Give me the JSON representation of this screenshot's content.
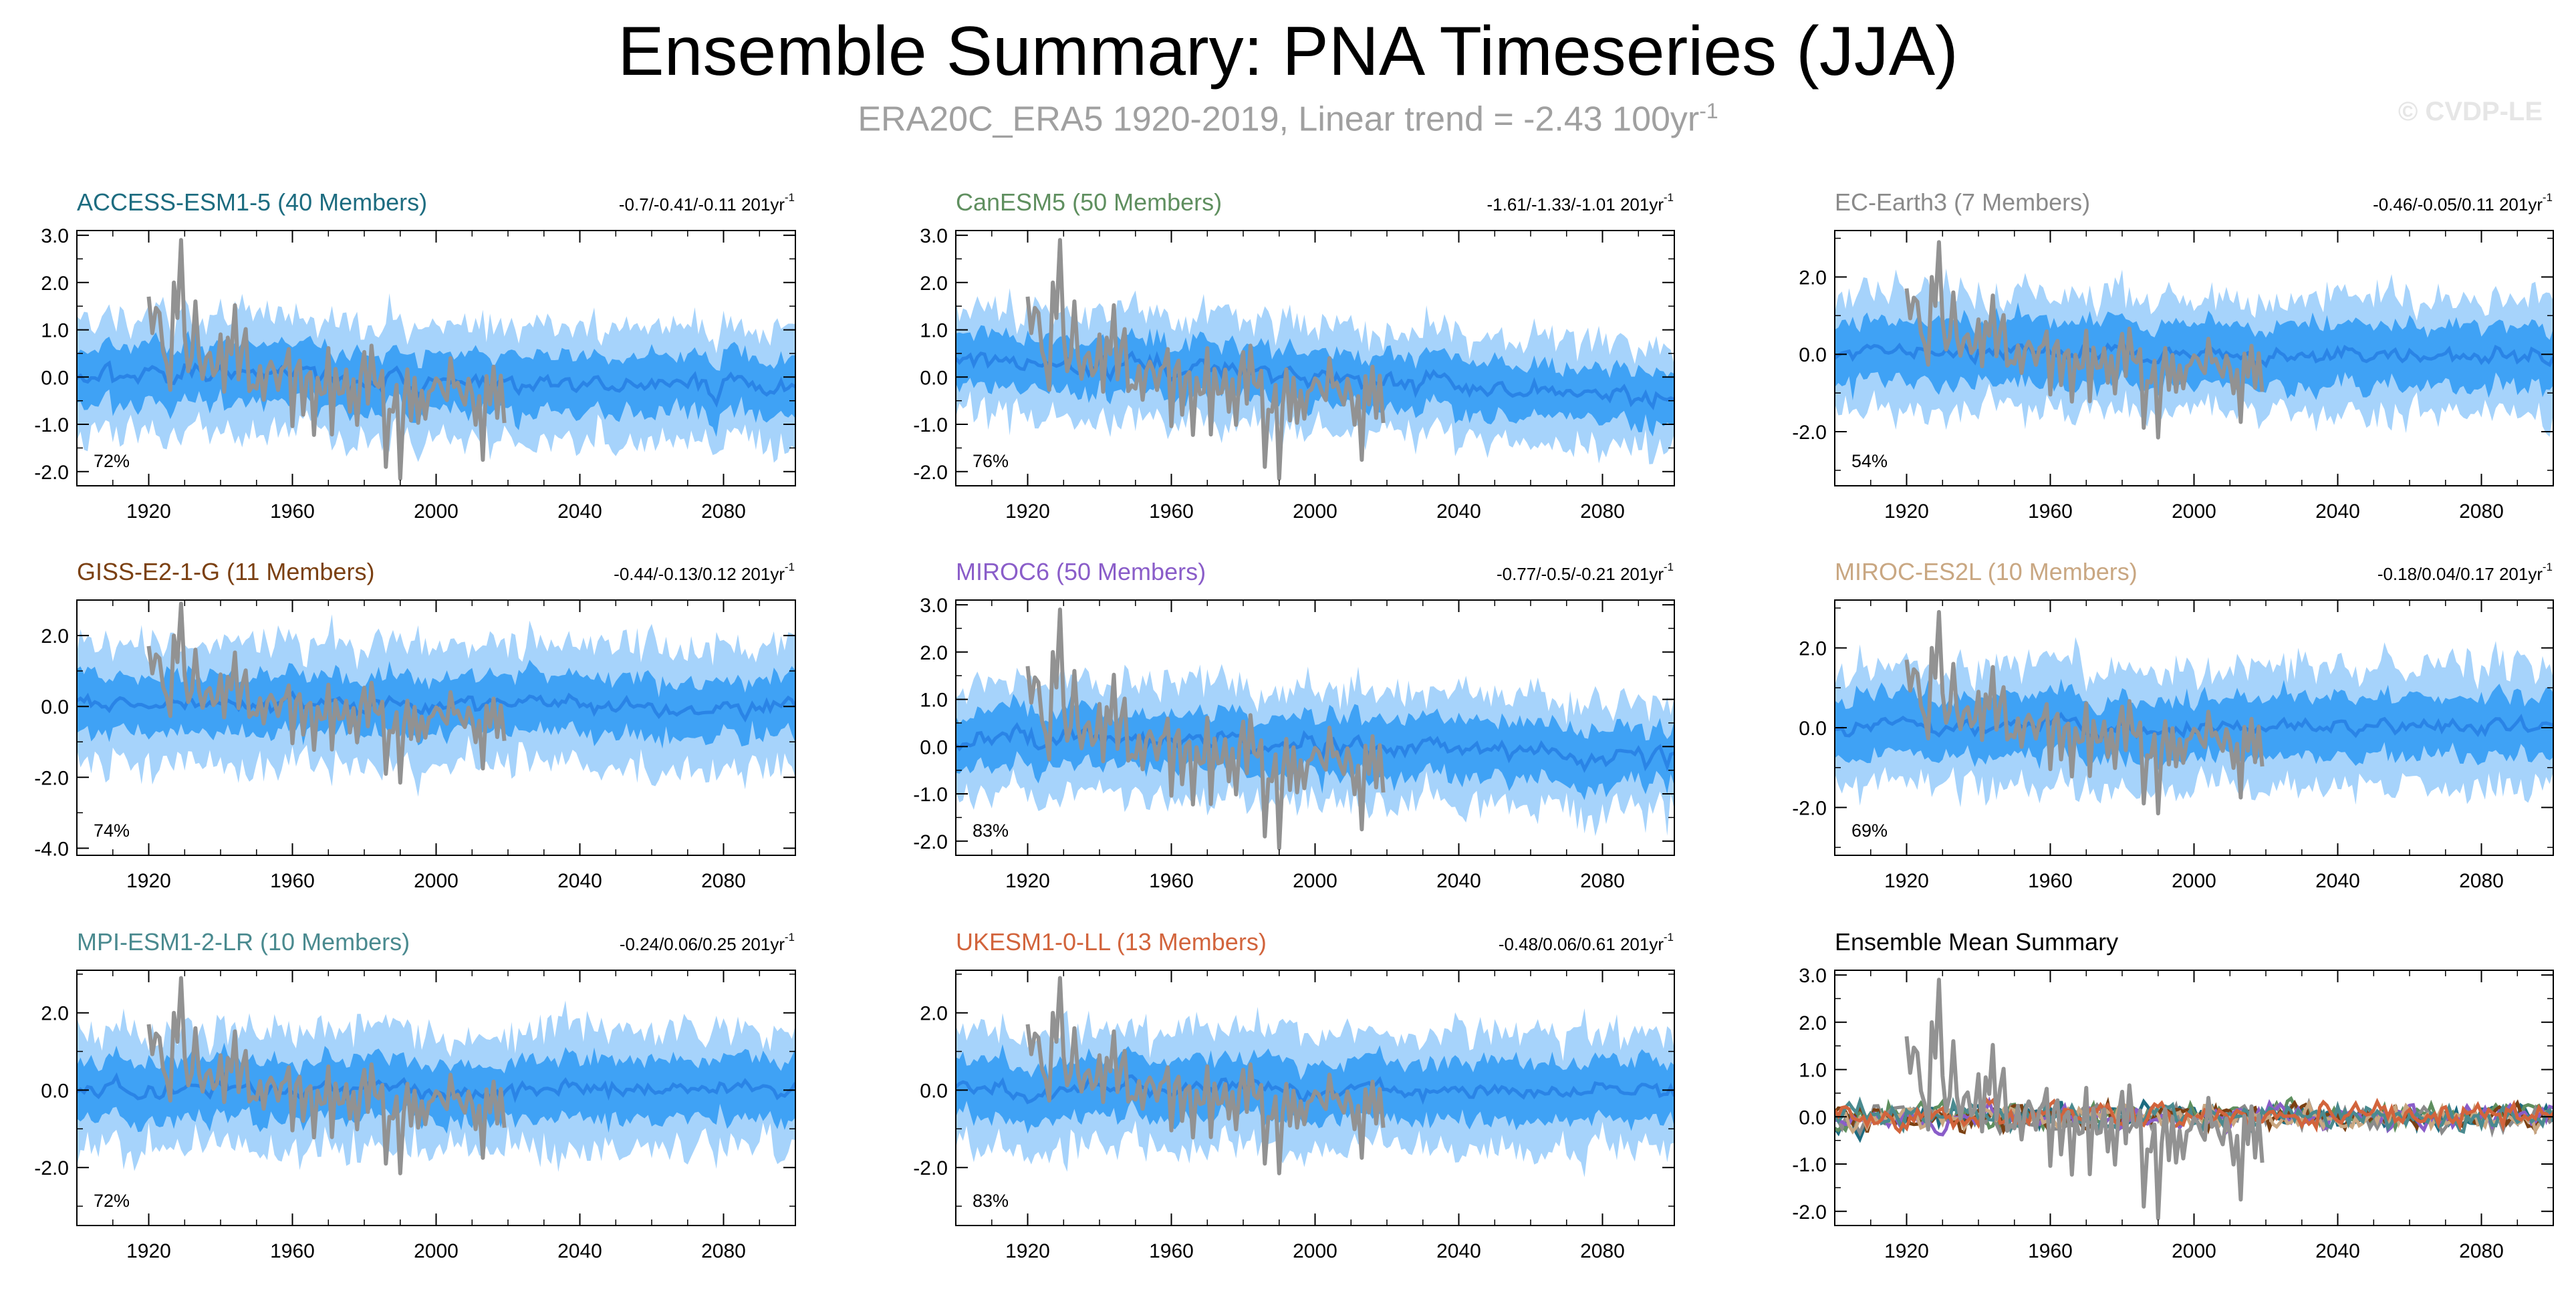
{
  "title": "Ensemble Summary: PNA Timeseries (JJA)",
  "subtitle": {
    "text": "ERA20C_ERA5 1920-2019, Linear trend = -2.43 100yr",
    "superscript": "-1"
  },
  "credit": "© CVDP-LE",
  "colors": {
    "band_outer": "#a6d3fb",
    "band_inner": "#3fa2f5",
    "ensemble_mean": "#2a84e6",
    "observations": "#929292"
  },
  "chart_data": [
    {
      "type": "area",
      "title": "ACCESS-ESM1-5 (40 Members)",
      "title_color": "#1d6c80",
      "trend": "-0.7/-0.41/-0.11 201yr",
      "trend_sup": "-1",
      "pct": "72%",
      "ylim": [
        -2.3,
        3.1
      ],
      "yticks": [
        -2.0,
        -1.0,
        0.0,
        1.0,
        2.0,
        3.0
      ],
      "yticklabels": [
        "-2.0",
        "-1.0",
        "0.0",
        "1.0",
        "2.0",
        "3.0"
      ],
      "xlim": [
        1900,
        2100
      ],
      "xticks": [
        1920,
        1960,
        2000,
        2040,
        2080
      ],
      "xticklabels": [
        "1920",
        "1960",
        "2000",
        "2040",
        "2080"
      ],
      "mean_trend": [
        0.15,
        -0.3
      ],
      "outer": 1.2,
      "inner": 0.6,
      "seed": 11
    },
    {
      "type": "area",
      "title": "CanESM5 (50 Members)",
      "title_color": "#5f8f5f",
      "trend": "-1.61/-1.33/-1.01 201yr",
      "trend_sup": "-1",
      "pct": "76%",
      "ylim": [
        -2.3,
        3.1
      ],
      "yticks": [
        -2.0,
        -1.0,
        0.0,
        1.0,
        2.0,
        3.0
      ],
      "yticklabels": [
        "-2.0",
        "-1.0",
        "0.0",
        "1.0",
        "2.0",
        "3.0"
      ],
      "xlim": [
        1900,
        2100
      ],
      "xticks": [
        1920,
        1960,
        2000,
        2040,
        2080
      ],
      "xticklabels": [
        "1920",
        "1960",
        "2000",
        "2040",
        "2080"
      ],
      "mean_trend": [
        0.45,
        -0.45
      ],
      "outer": 1.1,
      "inner": 0.55,
      "seed": 23
    },
    {
      "type": "area",
      "title": "EC-Earth3 (7 Members)",
      "title_color": "#8a8a8a",
      "trend": "-0.46/-0.05/0.11 201yr",
      "trend_sup": "-1",
      "pct": "54%",
      "ylim": [
        -3.4,
        3.2
      ],
      "yticks": [
        -2.0,
        0.0,
        2.0
      ],
      "yticklabels": [
        "-2.0",
        "0.0",
        "2.0"
      ],
      "xlim": [
        1900,
        2100
      ],
      "xticks": [
        1920,
        1960,
        2000,
        2040,
        2080
      ],
      "xticklabels": [
        "1920",
        "1960",
        "2000",
        "2040",
        "2080"
      ],
      "mean_trend": [
        0.05,
        -0.05
      ],
      "outer": 1.5,
      "inner": 0.8,
      "seed": 37
    },
    {
      "type": "area",
      "title": "GISS-E2-1-G (11 Members)",
      "title_color": "#7b4012",
      "trend": "-0.44/-0.13/0.12 201yr",
      "trend_sup": "-1",
      "pct": "74%",
      "ylim": [
        -4.2,
        3.0
      ],
      "yticks": [
        -4.0,
        -2.0,
        0.0,
        2.0
      ],
      "yticklabels": [
        "-4.0",
        "-2.0",
        "0.0",
        "2.0"
      ],
      "xlim": [
        1900,
        2100
      ],
      "xticks": [
        1920,
        1960,
        2000,
        2040,
        2080
      ],
      "xticklabels": [
        "1920",
        "1960",
        "2000",
        "2040",
        "2080"
      ],
      "mean_trend": [
        0.1,
        -0.05
      ],
      "outer": 1.7,
      "inner": 0.8,
      "seed": 41
    },
    {
      "type": "area",
      "title": "MIROC6 (50 Members)",
      "title_color": "#8a5dc9",
      "trend": "-0.77/-0.5/-0.21 201yr",
      "trend_sup": "-1",
      "pct": "83%",
      "ylim": [
        -2.3,
        3.1
      ],
      "yticks": [
        -2.0,
        -1.0,
        0.0,
        1.0,
        2.0,
        3.0
      ],
      "yticklabels": [
        "-2.0",
        "-1.0",
        "0.0",
        "1.0",
        "2.0",
        "3.0"
      ],
      "xlim": [
        1900,
        2100
      ],
      "xticks": [
        1920,
        1960,
        2000,
        2040,
        2080
      ],
      "xticklabels": [
        "1920",
        "1960",
        "2000",
        "2040",
        "2080"
      ],
      "mean_trend": [
        0.2,
        -0.2
      ],
      "outer": 1.2,
      "inner": 0.6,
      "seed": 53
    },
    {
      "type": "area",
      "title": "MIROC-ES2L (10 Members)",
      "title_color": "#c9a782",
      "trend": "-0.18/0.04/0.17 201yr",
      "trend_sup": "-1",
      "pct": "69%",
      "ylim": [
        -3.2,
        3.2
      ],
      "yticks": [
        -2.0,
        0.0,
        2.0
      ],
      "yticklabels": [
        "-2.0",
        "0.0",
        "2.0"
      ],
      "xlim": [
        1900,
        2100
      ],
      "xticks": [
        1920,
        1960,
        2000,
        2040,
        2080
      ],
      "xticklabels": [
        "1920",
        "1960",
        "2000",
        "2040",
        "2080"
      ],
      "mean_trend": [
        0.05,
        0.05
      ],
      "outer": 1.5,
      "inner": 0.75,
      "seed": 67
    },
    {
      "type": "area",
      "title": "MPI-ESM1-2-LR (10 Members)",
      "title_color": "#4a8a8f",
      "trend": "-0.24/0.06/0.25 201yr",
      "trend_sup": "-1",
      "pct": "72%",
      "ylim": [
        -3.5,
        3.1
      ],
      "yticks": [
        -2.0,
        0.0,
        2.0
      ],
      "yticklabels": [
        "-2.0",
        "0.0",
        "2.0"
      ],
      "xlim": [
        1900,
        2100
      ],
      "xticks": [
        1920,
        1960,
        2000,
        2040,
        2080
      ],
      "xticklabels": [
        "1920",
        "1960",
        "2000",
        "2040",
        "2080"
      ],
      "mean_trend": [
        0.0,
        0.05
      ],
      "outer": 1.5,
      "inner": 0.75,
      "seed": 71
    },
    {
      "type": "area",
      "title": "UKESM1-0-LL (13 Members)",
      "title_color": "#d2643c",
      "trend": "-0.48/0.06/0.61 201yr",
      "trend_sup": "-1",
      "pct": "83%",
      "ylim": [
        -3.5,
        3.1
      ],
      "yticks": [
        -2.0,
        0.0,
        2.0
      ],
      "yticklabels": [
        "-2.0",
        "0.0",
        "2.0"
      ],
      "xlim": [
        1900,
        2100
      ],
      "xticks": [
        1920,
        1960,
        2000,
        2040,
        2080
      ],
      "xticklabels": [
        "1920",
        "1960",
        "2000",
        "2040",
        "2080"
      ],
      "mean_trend": [
        0.0,
        0.05
      ],
      "outer": 1.5,
      "inner": 0.75,
      "seed": 83
    },
    {
      "type": "line",
      "title": "Ensemble Mean Summary",
      "title_color": "#000000",
      "trend": "",
      "trend_sup": "",
      "pct": "",
      "ylim": [
        -2.3,
        3.1
      ],
      "yticks": [
        -2.0,
        -1.0,
        0.0,
        1.0,
        2.0,
        3.0
      ],
      "yticklabels": [
        "-2.0",
        "-1.0",
        "0.0",
        "1.0",
        "2.0",
        "3.0"
      ],
      "xlim": [
        1900,
        2100
      ],
      "xticks": [
        1920,
        1960,
        2000,
        2040,
        2080
      ],
      "xticklabels": [
        "1920",
        "1960",
        "2000",
        "2040",
        "2080"
      ],
      "series_colors": [
        "#1d6c80",
        "#5f8f5f",
        "#8a8a8a",
        "#7b4012",
        "#8a5dc9",
        "#c9a782",
        "#4a8a8f",
        "#d2643c"
      ],
      "seed": 97
    }
  ]
}
